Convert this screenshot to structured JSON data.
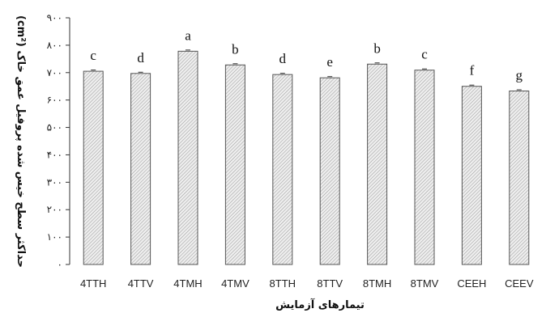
{
  "chart_data": {
    "type": "bar",
    "title": "",
    "xlabel": "تیمارهای آزمایش",
    "ylabel": "حداکثر سطح خیس شده پروفیل عمق خاک (cm²)",
    "categories": [
      "4TTH",
      "4TTV",
      "4TMH",
      "4TMV",
      "8TTH",
      "8TTV",
      "8TMH",
      "8TMV",
      "CEEH",
      "CEEV"
    ],
    "values": [
      705,
      697,
      778,
      728,
      693,
      681,
      731,
      709,
      650,
      633
    ],
    "letters": [
      "c",
      "d",
      "a",
      "b",
      "d",
      "e",
      "b",
      "c",
      "f",
      "g"
    ],
    "ylim": [
      0,
      900
    ],
    "yticks": [
      0,
      100,
      200,
      300,
      400,
      500,
      600,
      700,
      800,
      900
    ],
    "ytick_labels": [
      "۰",
      "۱۰۰",
      "۲۰۰",
      "۳۰۰",
      "۴۰۰",
      "۵۰۰",
      "۶۰۰",
      "۷۰۰",
      "۸۰۰",
      "۹۰۰"
    ],
    "grid": false,
    "legend": "none",
    "bar_fill": "#e4e4e4",
    "bar_stroke": "#555555"
  }
}
